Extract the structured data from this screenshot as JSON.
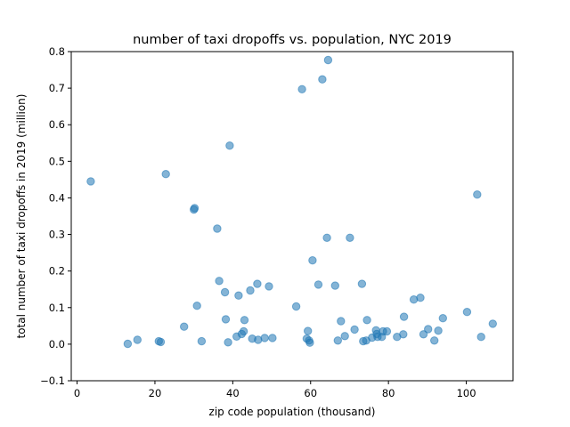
{
  "chart_data": {
    "type": "scatter",
    "title": "number of taxi dropoffs vs. population, NYC 2019",
    "xlabel": "zip code population (thousand)",
    "ylabel": "total number of taxi dropoffs in 2019 (million)",
    "xlim": [
      -1.5,
      112
    ],
    "ylim": [
      -0.1,
      0.8
    ],
    "xticks": [
      0,
      20,
      40,
      60,
      80,
      100
    ],
    "yticks": [
      -0.1,
      0.0,
      0.1,
      0.2,
      0.3,
      0.4,
      0.5,
      0.6,
      0.7,
      0.8
    ],
    "grid": false,
    "marker_color": "#1f77b4",
    "marker_alpha": 0.55,
    "points": [
      [
        3.5,
        0.445
      ],
      [
        13.0,
        0.001
      ],
      [
        15.5,
        0.012
      ],
      [
        21.0,
        0.008
      ],
      [
        21.5,
        0.006
      ],
      [
        22.8,
        0.465
      ],
      [
        27.5,
        0.048
      ],
      [
        30.0,
        0.368
      ],
      [
        30.2,
        0.372
      ],
      [
        30.8,
        0.105
      ],
      [
        32.0,
        0.008
      ],
      [
        36.0,
        0.316
      ],
      [
        36.5,
        0.173
      ],
      [
        38.0,
        0.142
      ],
      [
        38.2,
        0.068
      ],
      [
        38.8,
        0.005
      ],
      [
        39.2,
        0.543
      ],
      [
        41.0,
        0.021
      ],
      [
        41.5,
        0.133
      ],
      [
        42.3,
        0.028
      ],
      [
        42.8,
        0.035
      ],
      [
        43.0,
        0.066
      ],
      [
        44.5,
        0.147
      ],
      [
        45.0,
        0.015
      ],
      [
        46.3,
        0.165
      ],
      [
        46.5,
        0.012
      ],
      [
        48.2,
        0.017
      ],
      [
        49.3,
        0.158
      ],
      [
        50.2,
        0.017
      ],
      [
        56.3,
        0.103
      ],
      [
        57.8,
        0.697
      ],
      [
        59.0,
        0.015
      ],
      [
        59.3,
        0.036
      ],
      [
        59.6,
        0.01
      ],
      [
        59.8,
        0.004
      ],
      [
        60.5,
        0.229
      ],
      [
        62.0,
        0.163
      ],
      [
        63.0,
        0.724
      ],
      [
        64.2,
        0.291
      ],
      [
        64.5,
        0.777
      ],
      [
        66.3,
        0.16
      ],
      [
        67.0,
        0.01
      ],
      [
        67.8,
        0.063
      ],
      [
        68.8,
        0.022
      ],
      [
        70.1,
        0.291
      ],
      [
        71.3,
        0.04
      ],
      [
        73.2,
        0.165
      ],
      [
        73.5,
        0.008
      ],
      [
        74.3,
        0.01
      ],
      [
        74.5,
        0.066
      ],
      [
        75.8,
        0.018
      ],
      [
        76.8,
        0.038
      ],
      [
        77.0,
        0.028
      ],
      [
        77.2,
        0.02
      ],
      [
        78.3,
        0.02
      ],
      [
        78.6,
        0.035
      ],
      [
        79.6,
        0.035
      ],
      [
        82.2,
        0.02
      ],
      [
        83.8,
        0.027
      ],
      [
        84.0,
        0.075
      ],
      [
        86.5,
        0.122
      ],
      [
        88.2,
        0.127
      ],
      [
        89.0,
        0.027
      ],
      [
        90.2,
        0.041
      ],
      [
        91.8,
        0.01
      ],
      [
        92.8,
        0.037
      ],
      [
        94.0,
        0.071
      ],
      [
        100.2,
        0.088
      ],
      [
        102.8,
        0.409
      ],
      [
        103.8,
        0.02
      ],
      [
        106.8,
        0.056
      ]
    ]
  }
}
